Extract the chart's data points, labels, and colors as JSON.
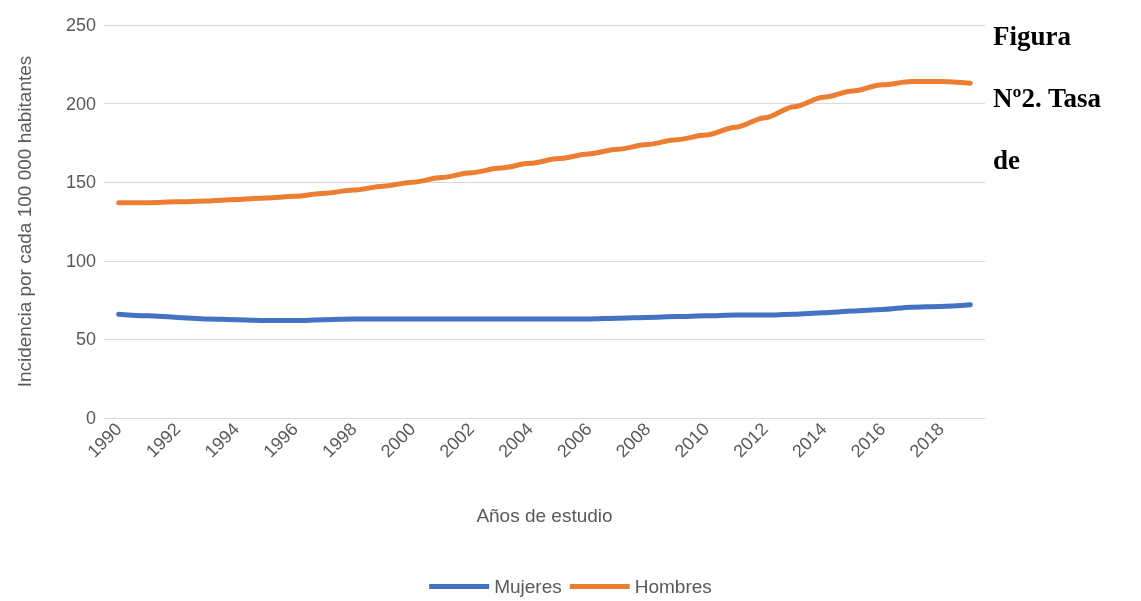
{
  "chart_data": {
    "type": "line",
    "xlabel": "Años de estudio",
    "ylabel": "Incidencia por cada 100 000 habitantes",
    "categories": [
      "1990",
      null,
      "1992",
      null,
      "1994",
      null,
      "1996",
      null,
      "1998",
      null,
      "2000",
      null,
      "2002",
      null,
      "2004",
      null,
      "2006",
      null,
      "2008",
      null,
      "2010",
      null,
      "2012",
      null,
      "2014",
      null,
      "2016",
      null,
      "2018",
      null
    ],
    "series": [
      {
        "name": "Mujeres",
        "color": "#4472c4",
        "values": [
          66,
          65,
          64,
          63,
          62.5,
          62,
          62,
          62.5,
          63,
          63,
          63,
          63,
          63,
          63,
          63,
          63,
          63,
          63.5,
          64,
          64.5,
          65,
          65.5,
          65.5,
          66,
          67,
          68,
          69,
          70.5,
          71,
          72
        ]
      },
      {
        "name": "Hombres",
        "color": "#ed7d31",
        "values": [
          137,
          137,
          137.5,
          138,
          139,
          140,
          141,
          143,
          145,
          147.5,
          150,
          153,
          156,
          159,
          162,
          165,
          168,
          171,
          174,
          177,
          180,
          185,
          191,
          198,
          204,
          208,
          212,
          214,
          214,
          213
        ]
      }
    ],
    "ylim": [
      0,
      250
    ],
    "yticks": [
      0,
      50,
      100,
      150,
      200,
      250
    ],
    "grid": "y",
    "legend": "bottom",
    "marker": "none",
    "line_style": "solid",
    "annotations": [
      "Figura Nº2. Tasa de"
    ]
  }
}
